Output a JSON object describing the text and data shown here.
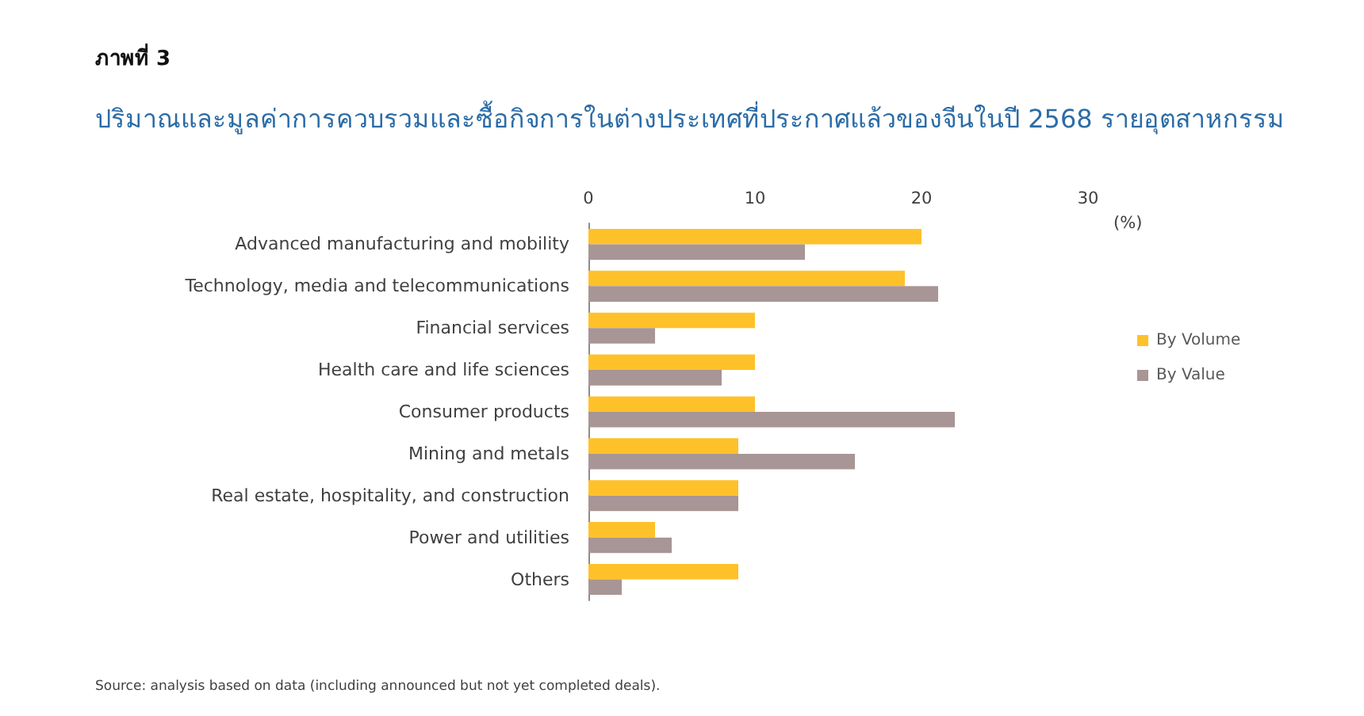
{
  "chart_data": {
    "type": "bar",
    "orientation": "horizontal",
    "title": "ภาพที่ 3",
    "subtitle": "ปริมาณและมูลค่าการควบรวมและซื้อกิจการในต่างประเทศที่ประกาศแล้วของจีนในปี 2568 รายอุตสาหกรรม",
    "xlabel": "(%)",
    "categories": [
      "Advanced manufacturing and mobility",
      "Technology, media and telecommunications",
      "Financial services",
      "Health care and life sciences",
      "Consumer products",
      "Mining and metals",
      "Real estate, hospitality, and construction",
      "Power and utilities",
      "Others"
    ],
    "series": [
      {
        "name": "By Volume",
        "color": "#ffc12a",
        "values": [
          20,
          19,
          10,
          10,
          10,
          9,
          9,
          4,
          9
        ]
      },
      {
        "name": "By Value",
        "color": "#a89595",
        "values": [
          13,
          21,
          4,
          8,
          22,
          16,
          9,
          5,
          2
        ]
      }
    ],
    "xlim": [
      0,
      30
    ],
    "xticks": [
      0,
      10,
      20,
      30
    ],
    "legend": "right",
    "annotations": [
      "Source: analysis based on data (including announced but not yet completed deals)."
    ]
  }
}
